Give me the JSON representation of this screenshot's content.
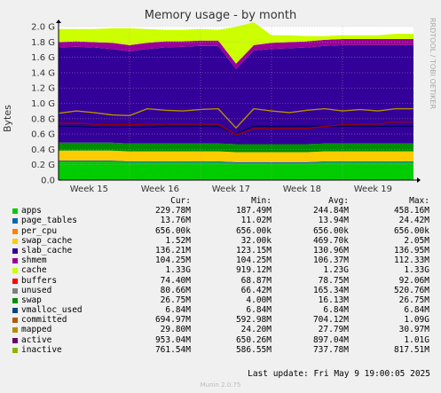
{
  "chart_data": {
    "type": "area",
    "title": "Memory usage - by month",
    "ylabel": "Bytes",
    "ylim": [
      0,
      2.0
    ],
    "y_unit": "G",
    "y_ticks": [
      "0.0",
      "0.2 G",
      "0.4 G",
      "0.6 G",
      "0.8 G",
      "1.0 G",
      "1.2 G",
      "1.4 G",
      "1.6 G",
      "1.8 G",
      "2.0 G"
    ],
    "x_ticks": [
      "Week 15",
      "Week 16",
      "Week 17",
      "Week 18",
      "Week 19"
    ],
    "grid": true,
    "legend_placement": "bottom",
    "x": [
      0,
      0.25,
      0.5,
      0.75,
      1,
      1.25,
      1.5,
      1.75,
      2,
      2.25,
      2.5,
      2.75,
      3,
      3.25,
      3.5,
      3.75,
      4,
      4.25,
      4.5,
      4.75,
      5
    ],
    "stack": [
      {
        "name": "apps",
        "color": "#00cc00",
        "values": [
          0.24,
          0.24,
          0.24,
          0.24,
          0.23,
          0.23,
          0.23,
          0.23,
          0.23,
          0.23,
          0.22,
          0.22,
          0.22,
          0.22,
          0.22,
          0.23,
          0.23,
          0.23,
          0.23,
          0.23,
          0.23
        ]
      },
      {
        "name": "page_tables",
        "color": "#0066b3",
        "values": [
          0.014,
          0.014,
          0.014,
          0.014,
          0.014,
          0.014,
          0.014,
          0.014,
          0.014,
          0.014,
          0.014,
          0.014,
          0.014,
          0.014,
          0.014,
          0.014,
          0.014,
          0.014,
          0.014,
          0.014,
          0.014
        ]
      },
      {
        "name": "slab_cache",
        "color": "#ffcc00",
        "values": [
          0.13,
          0.13,
          0.13,
          0.13,
          0.13,
          0.13,
          0.13,
          0.13,
          0.13,
          0.13,
          0.13,
          0.13,
          0.13,
          0.13,
          0.13,
          0.13,
          0.13,
          0.13,
          0.13,
          0.13,
          0.13
        ]
      },
      {
        "name": "shmem",
        "color": "#008f00",
        "values": [
          0.104,
          0.104,
          0.104,
          0.104,
          0.104,
          0.104,
          0.104,
          0.104,
          0.104,
          0.104,
          0.104,
          0.104,
          0.104,
          0.104,
          0.104,
          0.104,
          0.104,
          0.104,
          0.104,
          0.104,
          0.104
        ]
      },
      {
        "name": "cache",
        "color": "#330099",
        "values": [
          1.24,
          1.25,
          1.24,
          1.22,
          1.2,
          1.23,
          1.25,
          1.26,
          1.27,
          1.27,
          0.98,
          1.22,
          1.24,
          1.25,
          1.26,
          1.27,
          1.28,
          1.28,
          1.28,
          1.28,
          1.28
        ]
      },
      {
        "name": "buffers",
        "color": "#990099",
        "values": [
          0.07,
          0.07,
          0.07,
          0.08,
          0.08,
          0.08,
          0.08,
          0.07,
          0.07,
          0.07,
          0.07,
          0.07,
          0.08,
          0.08,
          0.08,
          0.08,
          0.08,
          0.08,
          0.08,
          0.08,
          0.08
        ]
      },
      {
        "name": "unused",
        "color": "#ccff00",
        "values": [
          0.17,
          0.16,
          0.17,
          0.19,
          0.22,
          0.18,
          0.15,
          0.15,
          0.15,
          0.14,
          0.48,
          0.3,
          0.1,
          0.09,
          0.07,
          0.05,
          0.05,
          0.05,
          0.05,
          0.07,
          0.07
        ]
      }
    ],
    "lines": [
      {
        "name": "committed",
        "color": "#000066",
        "values": [
          0.7,
          0.7,
          0.69,
          0.69,
          0.69,
          0.69,
          0.7,
          0.7,
          0.7,
          0.7,
          0.6,
          0.7,
          0.7,
          0.7,
          0.7,
          0.7,
          0.7,
          0.7,
          0.7,
          0.7,
          0.7
        ]
      },
      {
        "name": "active",
        "color": "#b38f00",
        "values": [
          0.87,
          0.9,
          0.88,
          0.85,
          0.84,
          0.93,
          0.91,
          0.9,
          0.92,
          0.93,
          0.68,
          0.93,
          0.9,
          0.88,
          0.91,
          0.93,
          0.9,
          0.92,
          0.9,
          0.93,
          0.93
        ]
      },
      {
        "name": "inactive",
        "color": "#990000",
        "values": [
          0.74,
          0.74,
          0.73,
          0.72,
          0.72,
          0.73,
          0.73,
          0.73,
          0.73,
          0.73,
          0.59,
          0.67,
          0.67,
          0.67,
          0.67,
          0.7,
          0.72,
          0.73,
          0.73,
          0.76,
          0.76
        ]
      }
    ]
  },
  "legend": {
    "headers": {
      "cur": "Cur:",
      "min": "Min:",
      "avg": "Avg:",
      "max": "Max:"
    },
    "rows": [
      {
        "name": "apps",
        "color": "#00cc00",
        "cur": "229.78M",
        "min": "187.49M",
        "avg": "244.84M",
        "max": "458.16M"
      },
      {
        "name": "page_tables",
        "color": "#0066b3",
        "cur": "13.76M",
        "min": "11.02M",
        "avg": "13.94M",
        "max": "24.42M"
      },
      {
        "name": "per_cpu",
        "color": "#ff8000",
        "cur": "656.00k",
        "min": "656.00k",
        "avg": "656.00k",
        "max": "656.00k"
      },
      {
        "name": "swap_cache",
        "color": "#ffcc00",
        "cur": "1.52M",
        "min": "32.00k",
        "avg": "469.70k",
        "max": "2.05M"
      },
      {
        "name": "slab_cache",
        "color": "#330099",
        "cur": "136.21M",
        "min": "123.15M",
        "avg": "130.96M",
        "max": "136.95M"
      },
      {
        "name": "shmem",
        "color": "#990099",
        "cur": "104.25M",
        "min": "104.25M",
        "avg": "106.37M",
        "max": "112.33M"
      },
      {
        "name": "cache",
        "color": "#ccff00",
        "cur": "1.33G",
        "min": "919.12M",
        "avg": "1.23G",
        "max": "1.33G"
      },
      {
        "name": "buffers",
        "color": "#ff0000",
        "cur": "74.40M",
        "min": "68.87M",
        "avg": "78.75M",
        "max": "92.06M"
      },
      {
        "name": "unused",
        "color": "#808080",
        "cur": "80.66M",
        "min": "66.42M",
        "avg": "165.34M",
        "max": "520.76M"
      },
      {
        "name": "swap",
        "color": "#008f00",
        "cur": "26.75M",
        "min": "4.00M",
        "avg": "16.13M",
        "max": "26.75M"
      },
      {
        "name": "vmalloc_used",
        "color": "#00487d",
        "cur": "6.84M",
        "min": "6.84M",
        "avg": "6.84M",
        "max": "6.84M"
      },
      {
        "name": "committed",
        "color": "#b35a00",
        "cur": "694.97M",
        "min": "592.98M",
        "avg": "704.12M",
        "max": "1.09G"
      },
      {
        "name": "mapped",
        "color": "#b38f00",
        "cur": "29.80M",
        "min": "24.20M",
        "avg": "27.79M",
        "max": "30.97M"
      },
      {
        "name": "active",
        "color": "#6b006b",
        "cur": "953.04M",
        "min": "650.26M",
        "avg": "897.04M",
        "max": "1.01G"
      },
      {
        "name": "inactive",
        "color": "#8fb300",
        "cur": "761.54M",
        "min": "586.55M",
        "avg": "737.78M",
        "max": "817.51M"
      }
    ]
  },
  "last_update": "Last update:  Fri May  9 19:00:05 2025",
  "side_label": "RRDTOOL / TOBI OETIKER",
  "footer": "Munin 2.0.75"
}
